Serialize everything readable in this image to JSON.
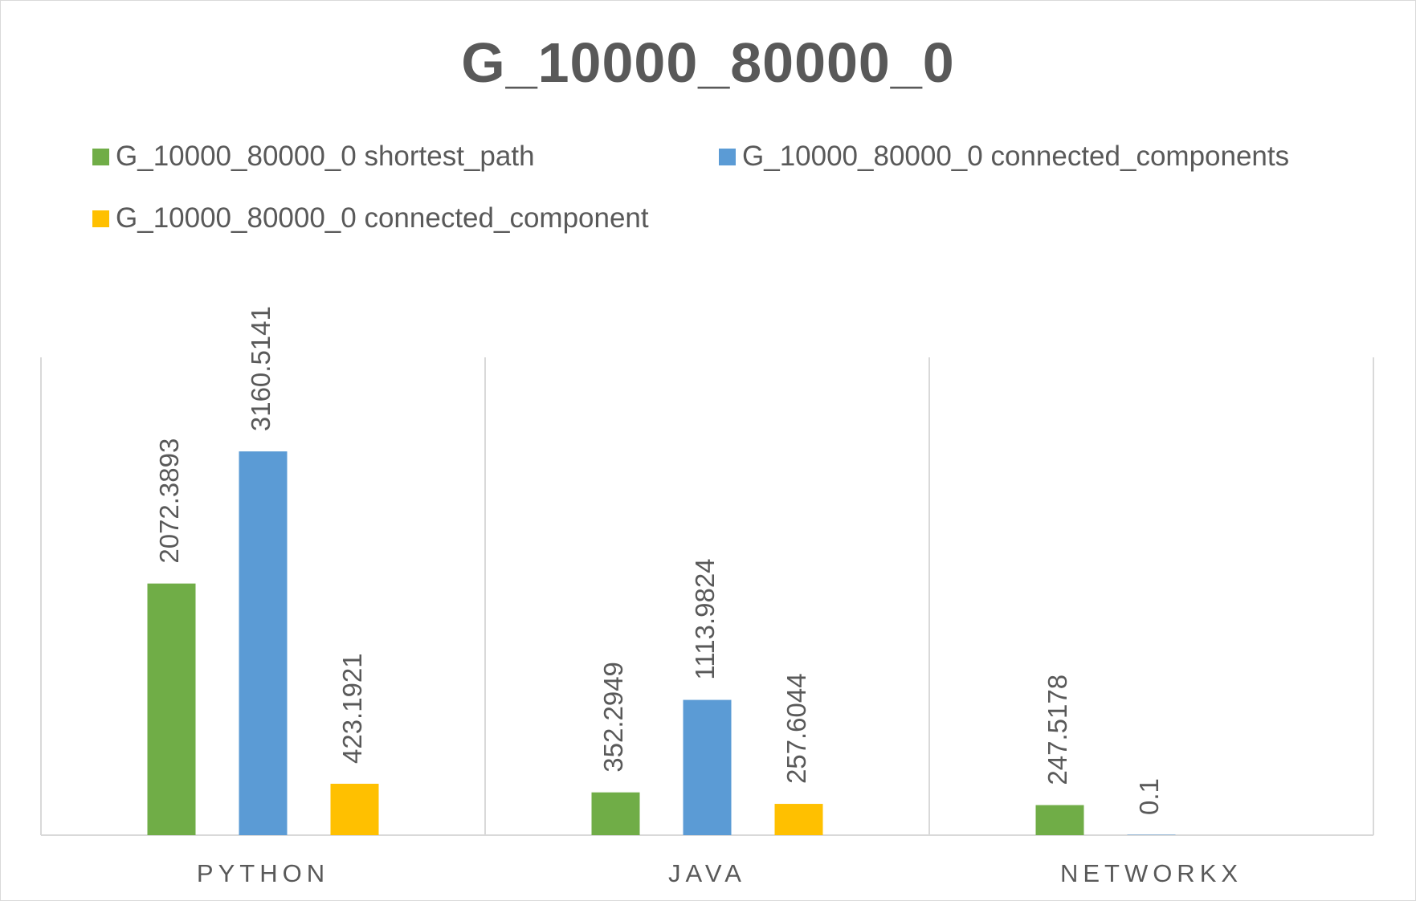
{
  "chart_data": {
    "type": "bar",
    "title": "G_10000_80000_0",
    "categories": [
      "PYTHON",
      "JAVA",
      "NETWORKX"
    ],
    "series": [
      {
        "name": "G_10000_80000_0 shortest_path",
        "color": "#70ad47",
        "values": [
          2072.3893,
          352.2949,
          247.5178
        ],
        "labels": [
          "2072.3893",
          "352.2949",
          "247.5178"
        ]
      },
      {
        "name": "G_10000_80000_0 connected_components",
        "color": "#5b9bd5",
        "values": [
          3160.5141,
          1113.9824,
          0.1
        ],
        "labels": [
          "3160.5141",
          "1113.9824",
          "0.1"
        ]
      },
      {
        "name": "G_10000_80000_0 connected_component",
        "color": "#ffc000",
        "values": [
          423.1921,
          257.6044,
          null
        ],
        "labels": [
          "423.1921",
          "257.6044",
          ""
        ]
      }
    ],
    "xlabel": "",
    "ylabel": "",
    "ylim": [
      0,
      3500
    ],
    "grid": "vertical category separators",
    "legend": "top"
  }
}
